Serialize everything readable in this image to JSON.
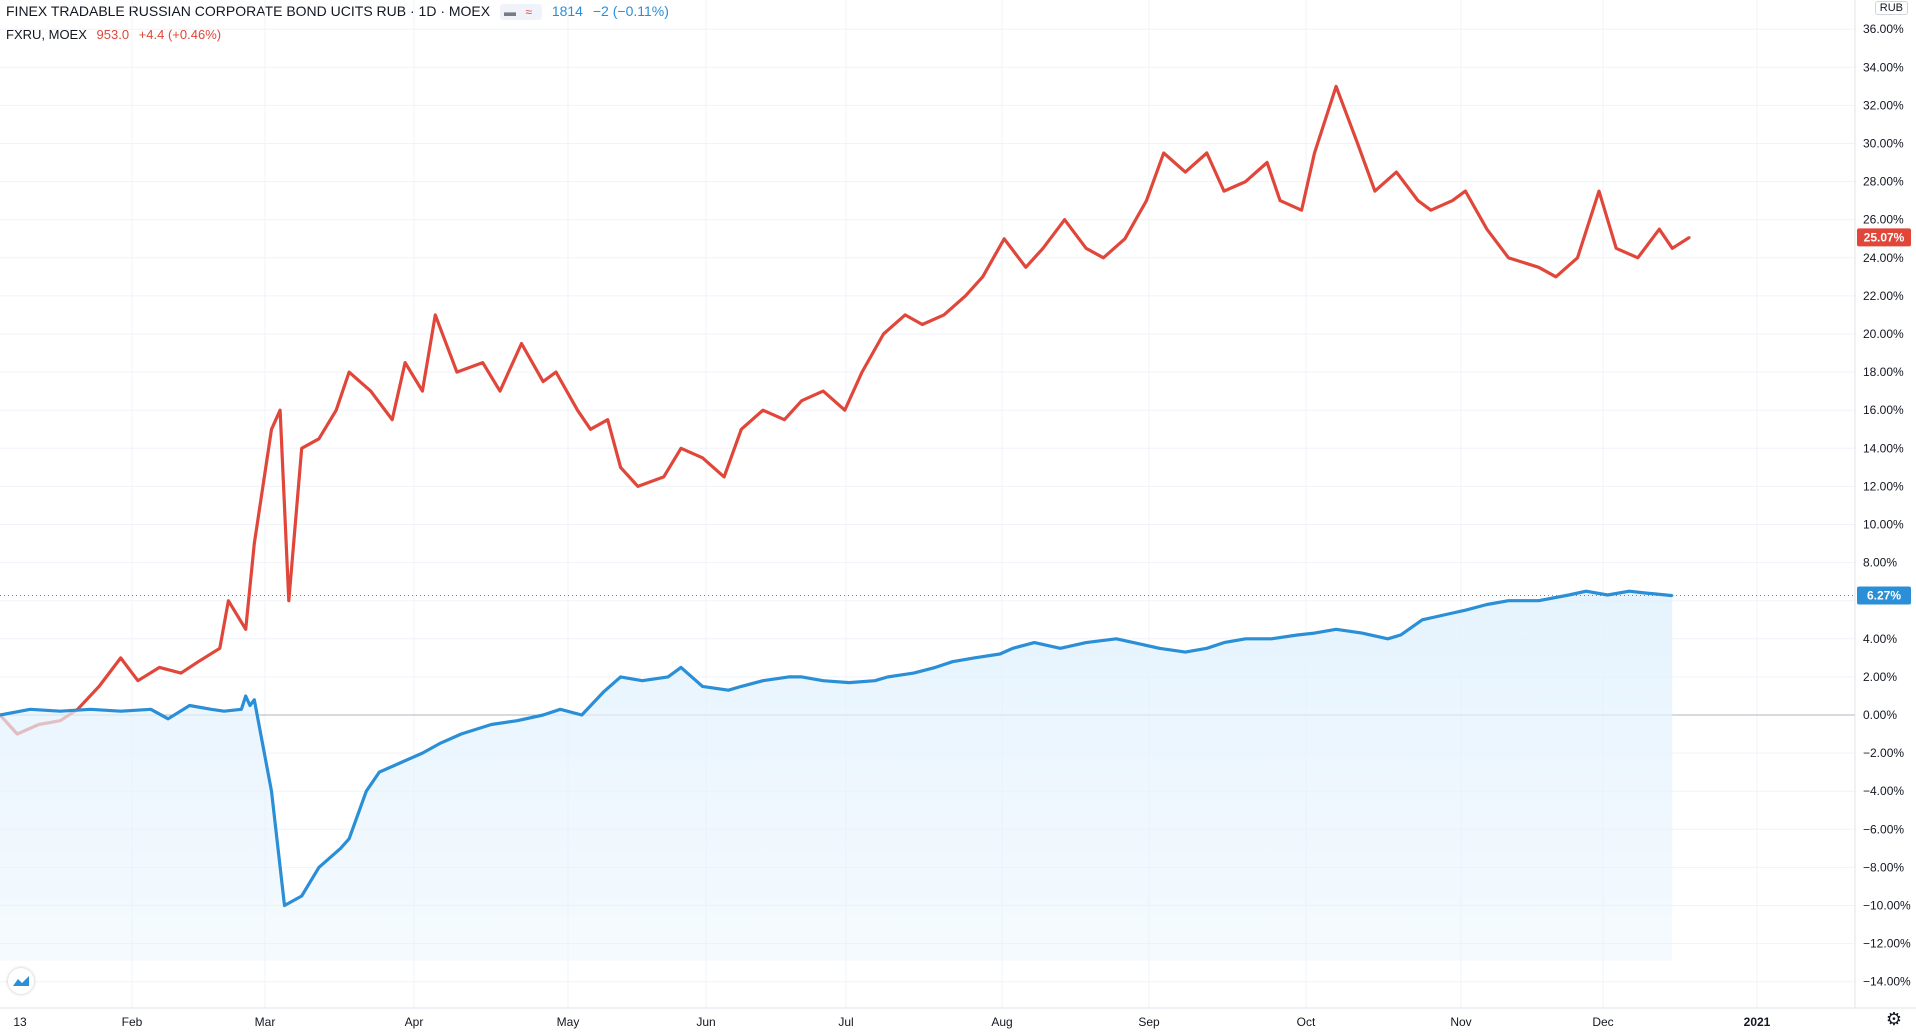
{
  "legend": {
    "title": "FINEX TRADABLE RUSSIAN CORPORATE BOND UCITS RUB · 1D · MOEX",
    "compare_value": "1814",
    "compare_change": "−2 (−0.11%)",
    "symbol": "FXRU, MOEX",
    "symbol_price": "953.0",
    "symbol_change": "+4.4 (+0.46%)"
  },
  "currency": "RUB",
  "colors": {
    "fxru": "#e0473a",
    "main": "#2a8fd6",
    "fill": "#e3f2fd",
    "grid": "#f0f3fa"
  },
  "chart_data": {
    "type": "line",
    "ylim": [
      -15,
      37
    ],
    "y_ticks": [
      "36.00%",
      "34.00%",
      "32.00%",
      "30.00%",
      "28.00%",
      "26.00%",
      "24.00%",
      "22.00%",
      "20.00%",
      "18.00%",
      "16.00%",
      "14.00%",
      "12.00%",
      "10.00%",
      "8.00%",
      "6.00%",
      "4.00%",
      "2.00%",
      "0.00%",
      "−2.00%",
      "−4.00%",
      "−6.00%",
      "−8.00%",
      "−10.00%",
      "−12.00%",
      "−14.00%"
    ],
    "x_labels": [
      "13",
      "Feb",
      "Mar",
      "Apr",
      "May",
      "Jun",
      "Jul",
      "Aug",
      "Sep",
      "Oct",
      "Nov",
      "Dec",
      "2021"
    ],
    "last_values": {
      "fxru": "25.07%",
      "main": "6.27%"
    },
    "series": [
      {
        "name": "FXRU, MOEX",
        "values": [
          0.0,
          -1.0,
          -0.5,
          -0.3,
          0.3,
          1.5,
          3.0,
          1.8,
          2.5,
          2.2,
          2.8,
          3.5,
          6.0,
          4.5,
          9.0,
          15.0,
          16.0,
          6.0,
          14.0,
          14.5,
          16.0,
          18.0,
          17.0,
          15.5,
          18.5,
          17.0,
          21.0,
          18.0,
          18.5,
          17.0,
          19.5,
          17.5,
          18.0,
          16.0,
          15.0,
          15.5,
          13.0,
          12.0,
          12.5,
          14.0,
          13.5,
          12.5,
          15.0,
          16.0,
          15.5,
          16.5,
          17.0,
          16.0,
          18.0,
          20.0,
          21.0,
          20.5,
          21.0,
          22.0,
          23.0,
          25.0,
          23.5,
          24.5,
          26.0,
          24.5,
          24.0,
          25.0,
          27.0,
          29.5,
          28.5,
          29.5,
          27.5,
          28.0,
          29.0,
          27.0,
          26.5,
          29.5,
          33.0,
          30.0,
          27.5,
          28.5,
          27.0,
          26.5,
          27.0,
          27.5,
          25.5,
          24.0,
          23.5,
          23.0,
          24.0,
          27.5,
          24.5,
          24.0,
          25.5,
          24.5,
          25.07
        ],
        "dates": [
          "2020-01-13",
          "2020-01-17",
          "2020-01-22",
          "2020-01-27",
          "2020-01-31",
          "2020-02-05",
          "2020-02-10",
          "2020-02-14",
          "2020-02-19",
          "2020-02-24",
          "2020-02-28",
          "2020-03-04",
          "2020-03-06",
          "2020-03-10",
          "2020-03-12",
          "2020-03-16",
          "2020-03-18",
          "2020-03-20",
          "2020-03-23",
          "2020-03-27",
          "2020-03-31",
          "2020-04-03",
          "2020-04-08",
          "2020-04-13",
          "2020-04-16",
          "2020-04-20",
          "2020-04-23",
          "2020-04-28",
          "2020-05-04",
          "2020-05-08",
          "2020-05-13",
          "2020-05-18",
          "2020-05-21",
          "2020-05-26",
          "2020-05-29",
          "2020-06-02",
          "2020-06-05",
          "2020-06-09",
          "2020-06-15",
          "2020-06-19",
          "2020-06-24",
          "2020-06-29",
          "2020-07-03",
          "2020-07-08",
          "2020-07-13",
          "2020-07-17",
          "2020-07-22",
          "2020-07-27",
          "2020-07-31",
          "2020-08-05",
          "2020-08-10",
          "2020-08-14",
          "2020-08-19",
          "2020-08-24",
          "2020-08-28",
          "2020-09-02",
          "2020-09-07",
          "2020-09-11",
          "2020-09-16",
          "2020-09-21",
          "2020-09-25",
          "2020-09-30",
          "2020-10-05",
          "2020-10-09",
          "2020-10-14",
          "2020-10-19",
          "2020-10-23",
          "2020-10-28",
          "2020-11-02",
          "2020-11-05",
          "2020-11-10",
          "2020-11-13",
          "2020-11-18",
          "2020-11-23",
          "2020-11-27",
          "2020-12-02",
          "2020-12-07",
          "2020-12-10",
          "2020-12-15",
          "2020-12-18",
          "2020-12-23",
          "2020-12-28",
          "2021-01-04",
          "2021-01-08",
          "2021-01-13",
          "2021-01-18",
          "2021-01-22",
          "2021-01-27",
          "2021-02-01",
          "2021-02-04",
          "2021-02-08"
        ]
      },
      {
        "name": "1814",
        "values": [
          0.0,
          0.3,
          0.2,
          0.3,
          0.2,
          0.3,
          -0.2,
          0.5,
          0.3,
          0.2,
          0.3,
          1.0,
          0.5,
          0.8,
          -4.0,
          -10.0,
          -9.5,
          -8.0,
          -7.0,
          -6.5,
          -4.0,
          -3.0,
          -2.5,
          -2.0,
          -1.5,
          -1.0,
          -0.5,
          -0.3,
          0.0,
          0.3,
          0.0,
          1.2,
          2.0,
          1.8,
          2.0,
          2.5,
          1.5,
          1.3,
          1.5,
          1.8,
          2.0,
          2.0,
          1.8,
          1.7,
          1.8,
          2.0,
          2.2,
          2.5,
          2.8,
          3.0,
          3.2,
          3.5,
          3.8,
          3.5,
          3.8,
          4.0,
          3.8,
          3.5,
          3.3,
          3.5,
          3.8,
          4.0,
          4.0,
          4.2,
          4.3,
          4.5,
          4.3,
          4.0,
          4.2,
          5.0,
          5.3,
          5.5,
          5.8,
          6.0,
          6.0,
          6.3,
          6.5,
          6.3,
          6.5,
          6.4,
          6.27
        ],
        "dates": [
          "2020-01-13",
          "2020-01-20",
          "2020-01-27",
          "2020-02-03",
          "2020-02-10",
          "2020-02-17",
          "2020-02-21",
          "2020-02-26",
          "2020-03-02",
          "2020-03-05",
          "2020-03-09",
          "2020-03-10",
          "2020-03-11",
          "2020-03-12",
          "2020-03-16",
          "2020-03-19",
          "2020-03-23",
          "2020-03-27",
          "2020-04-01",
          "2020-04-03",
          "2020-04-07",
          "2020-04-10",
          "2020-04-15",
          "2020-04-20",
          "2020-04-24",
          "2020-04-29",
          "2020-05-06",
          "2020-05-12",
          "2020-05-18",
          "2020-05-22",
          "2020-05-27",
          "2020-06-01",
          "2020-06-05",
          "2020-06-10",
          "2020-06-16",
          "2020-06-19",
          "2020-06-24",
          "2020-06-30",
          "2020-07-03",
          "2020-07-08",
          "2020-07-14",
          "2020-07-17",
          "2020-07-22",
          "2020-07-28",
          "2020-08-03",
          "2020-08-06",
          "2020-08-12",
          "2020-08-17",
          "2020-08-21",
          "2020-08-26",
          "2020-09-01",
          "2020-09-04",
          "2020-09-09",
          "2020-09-15",
          "2020-09-21",
          "2020-09-28",
          "2020-10-02",
          "2020-10-08",
          "2020-10-14",
          "2020-10-19",
          "2020-10-23",
          "2020-10-28",
          "2020-11-03",
          "2020-11-09",
          "2020-11-13",
          "2020-11-18",
          "2020-11-24",
          "2020-11-30",
          "2020-12-03",
          "2020-12-08",
          "2020-12-14",
          "2020-12-18",
          "2020-12-23",
          "2020-12-28",
          "2021-01-04",
          "2021-01-11",
          "2021-01-15",
          "2021-01-20",
          "2021-01-25",
          "2021-01-29",
          "2021-02-04"
        ]
      }
    ]
  }
}
